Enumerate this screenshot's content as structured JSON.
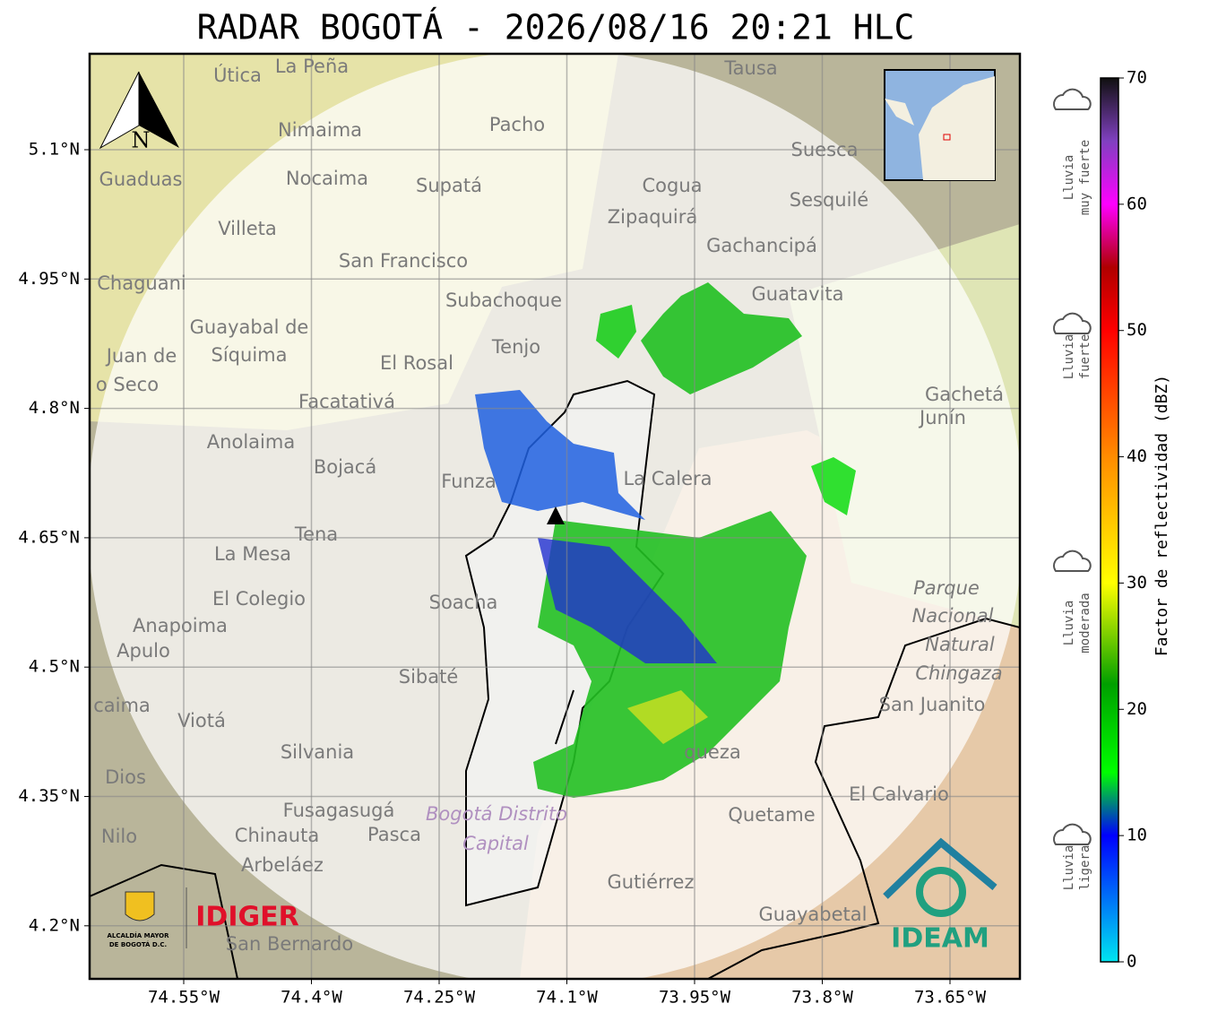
{
  "title": "RADAR BOGOTÁ - 2026/08/16 20:21 HLC",
  "map": {
    "north_label": "N",
    "lon_ticks": [
      {
        "value": -74.55,
        "label": "74.55°W"
      },
      {
        "value": -74.4,
        "label": "74.4°W"
      },
      {
        "value": -74.25,
        "label": "74.25°W"
      },
      {
        "value": -74.1,
        "label": "74.1°W"
      },
      {
        "value": -73.95,
        "label": "73.95°W"
      },
      {
        "value": -73.8,
        "label": "73.8°W"
      },
      {
        "value": -73.65,
        "label": "73.65°W"
      }
    ],
    "lat_ticks": [
      {
        "value": 5.1,
        "label": "5.1°N"
      },
      {
        "value": 4.95,
        "label": "4.95°N"
      },
      {
        "value": 4.8,
        "label": "4.8°N"
      },
      {
        "value": 4.65,
        "label": "4.65°N"
      },
      {
        "value": 4.5,
        "label": "4.5°N"
      },
      {
        "value": 4.35,
        "label": "4.35°N"
      },
      {
        "value": 4.2,
        "label": "4.2°N"
      }
    ],
    "places": [
      "La Peña",
      "Útica",
      "Tausa",
      "Pacho",
      "Nimaima",
      "Suesca",
      "Guaduas",
      "Nocaima",
      "Supatá",
      "Cogua",
      "Zipaquirá",
      "Sesquilé",
      "Villeta",
      "Gachancipá",
      "San Francisco",
      "Chaguani",
      "Guatavita",
      "Subachoque",
      "Guayabal de",
      "Síquima",
      "Juan de",
      "o Seco",
      "Tenjo",
      "El Rosal",
      "Gachetá",
      "Junín",
      "Facatativá",
      "Anolaima",
      "Bojacá",
      "Funza",
      "La Calera",
      "Tena",
      "La Mesa",
      "El Colegio",
      "Soacha",
      "Parque",
      "Nacional",
      "Natural",
      "Chingaza",
      "Anapoima",
      "Apulo",
      "Sibaté",
      "San Juanito",
      "caima",
      "Viotá",
      "Silvania",
      "queza",
      "Dios",
      "El Calvario",
      "Fusagasugá",
      "Bogotá Distrito",
      "Capital",
      "Quetame",
      "Nilo",
      "Chinauta",
      "Pasca",
      "Arbeláez",
      "Gutiérrez",
      "Guayabetal",
      "San Bernardo"
    ]
  },
  "logos": {
    "alcaldia": [
      "ALCALDÍA MAYOR",
      "DE BOGOTÁ D.C."
    ],
    "idiger": "IDIGER",
    "ideam": "IDEAM"
  },
  "colorbar": {
    "label": "Factor de reflectividad (dBZ)",
    "lim": [
      0,
      70
    ],
    "ticks": [
      0,
      10,
      20,
      30,
      40,
      50,
      60,
      70
    ],
    "stops": [
      {
        "value": 0,
        "color": "#00e5f0"
      },
      {
        "value": 10,
        "color": "#0000ff"
      },
      {
        "value": 15,
        "color": "#00ff00"
      },
      {
        "value": 22,
        "color": "#00a000"
      },
      {
        "value": 30,
        "color": "#ffff00"
      },
      {
        "value": 40,
        "color": "#ff8c00"
      },
      {
        "value": 50,
        "color": "#ff0000"
      },
      {
        "value": 55,
        "color": "#b00000"
      },
      {
        "value": 60,
        "color": "#ff00ff"
      },
      {
        "value": 65,
        "color": "#8040c0"
      },
      {
        "value": 70,
        "color": "#101010"
      }
    ],
    "categories": [
      [
        "Lluvia",
        "muy fuerte"
      ],
      [
        "Lluvia",
        "fuerte"
      ],
      [
        "Lluvia",
        "moderada"
      ],
      [
        "Lluvia",
        "ligera"
      ]
    ]
  }
}
